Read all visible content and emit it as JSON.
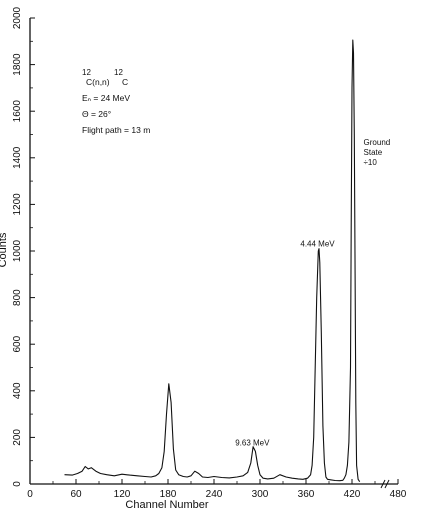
{
  "chart_data": {
    "type": "line",
    "xlabel": "Channel Number",
    "ylabel": "Counts",
    "xlim": [
      0,
      480
    ],
    "ylim": [
      0,
      2000
    ],
    "xticks": [
      0,
      60,
      120,
      180,
      240,
      300,
      360,
      420,
      480
    ],
    "yticks": [
      0,
      200,
      400,
      600,
      800,
      1000,
      1200,
      1400,
      1600,
      1800,
      2000
    ],
    "reaction": {
      "mass_pre": "12",
      "core": "C(n,n)",
      "mass_post": "12",
      "element": "C"
    },
    "conditions": [
      "Eₙ = 24 MeV",
      "Θ = 26°",
      "Flight path = 13 m"
    ],
    "peak_labels": [
      {
        "text": "9.63 MeV",
        "x": 290,
        "y": 165
      },
      {
        "text": "4.44 MeV",
        "x": 375,
        "y": 1020
      },
      {
        "lines": [
          "Ground",
          "State",
          "÷10"
        ],
        "x": 422,
        "y": 1900
      }
    ],
    "series": [
      {
        "x": [
          45,
          55,
          62,
          68,
          72,
          76,
          80,
          86,
          92,
          100,
          110,
          120,
          130,
          140,
          150,
          158,
          164,
          168,
          172,
          175,
          178,
          181,
          184,
          187,
          190,
          194,
          200,
          205,
          210,
          215,
          220,
          225,
          232,
          240,
          250,
          260,
          270,
          278,
          284,
          288,
          291,
          294,
          297,
          300,
          304,
          310,
          318,
          326,
          334,
          342,
          350,
          356,
          362,
          366,
          368,
          370,
          372,
          374,
          376,
          377,
          378,
          380,
          382,
          384,
          386,
          388,
          392,
          398,
          404,
          408,
          410,
          412,
          414,
          416,
          418,
          419,
          420,
          421,
          422,
          423,
          424,
          425,
          426,
          428,
          430
        ],
        "y": [
          40,
          38,
          45,
          55,
          75,
          65,
          70,
          55,
          45,
          40,
          35,
          42,
          38,
          35,
          32,
          30,
          35,
          45,
          70,
          140,
          300,
          430,
          350,
          150,
          60,
          40,
          32,
          30,
          35,
          55,
          45,
          30,
          28,
          32,
          28,
          26,
          30,
          35,
          50,
          90,
          160,
          140,
          80,
          40,
          25,
          22,
          25,
          40,
          30,
          25,
          22,
          20,
          25,
          40,
          80,
          200,
          500,
          800,
          1000,
          1010,
          950,
          650,
          250,
          90,
          30,
          20,
          18,
          15,
          14,
          16,
          25,
          40,
          80,
          180,
          500,
          1100,
          1700,
          1905,
          1850,
          1500,
          900,
          350,
          80,
          20,
          10
        ]
      }
    ]
  }
}
